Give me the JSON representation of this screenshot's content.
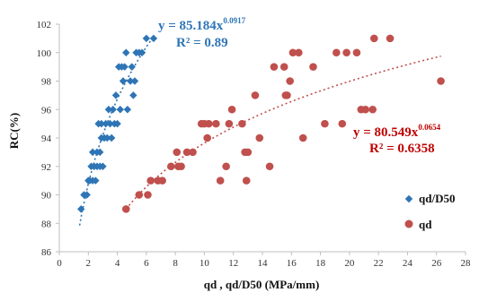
{
  "chart_data": {
    "type": "scatter",
    "title": "",
    "xlabel": "qd , qd/D50 (MPa/mm)",
    "ylabel": "RC(%)",
    "xlim": [
      0,
      28
    ],
    "ylim": [
      86,
      102
    ],
    "xticks": [
      "0",
      "2",
      "4",
      "6",
      "8",
      "10",
      "12",
      "14",
      "16",
      "18",
      "20",
      "22",
      "24",
      "26",
      "28"
    ],
    "yticks": [
      "86",
      "88",
      "90",
      "92",
      "94",
      "96",
      "98",
      "100",
      "102"
    ],
    "grid": false,
    "legend_position": "right",
    "series": [
      {
        "name": "qd/D50",
        "marker": "diamond",
        "color": "#2E75B6",
        "points": [
          [
            1.5,
            89
          ],
          [
            1.7,
            90
          ],
          [
            1.9,
            90
          ],
          [
            2.0,
            91
          ],
          [
            2.1,
            91
          ],
          [
            2.2,
            92
          ],
          [
            2.3,
            93
          ],
          [
            2.3,
            91
          ],
          [
            2.4,
            92
          ],
          [
            2.5,
            91
          ],
          [
            2.6,
            92
          ],
          [
            2.6,
            93
          ],
          [
            2.7,
            95
          ],
          [
            2.8,
            93
          ],
          [
            2.8,
            92
          ],
          [
            2.9,
            94
          ],
          [
            2.9,
            95
          ],
          [
            3.0,
            92
          ],
          [
            3.1,
            94
          ],
          [
            3.2,
            95
          ],
          [
            3.3,
            94
          ],
          [
            3.4,
            96
          ],
          [
            3.5,
            95
          ],
          [
            3.6,
            94
          ],
          [
            3.7,
            96
          ],
          [
            3.8,
            95
          ],
          [
            3.9,
            97
          ],
          [
            4.0,
            95
          ],
          [
            4.1,
            99
          ],
          [
            4.2,
            96
          ],
          [
            4.3,
            99
          ],
          [
            4.4,
            98
          ],
          [
            4.5,
            99
          ],
          [
            4.6,
            100
          ],
          [
            4.7,
            96
          ],
          [
            4.9,
            98
          ],
          [
            5.0,
            99
          ],
          [
            5.1,
            97
          ],
          [
            5.2,
            98
          ],
          [
            5.3,
            100
          ],
          [
            5.5,
            100
          ],
          [
            5.7,
            100
          ],
          [
            6.0,
            101
          ],
          [
            6.5,
            101
          ]
        ],
        "trendline": {
          "type": "power",
          "a": 85.184,
          "b": 0.0917,
          "x_range": [
            1.4,
            6.3
          ]
        },
        "equation": {
          "base": "y = 85.184x",
          "exponent": "0.0917",
          "r2": "R² = 0.89"
        }
      },
      {
        "name": "qd",
        "marker": "circle",
        "color": "#C0504D",
        "points": [
          [
            4.6,
            89
          ],
          [
            5.5,
            90
          ],
          [
            6.1,
            90
          ],
          [
            6.3,
            91
          ],
          [
            6.8,
            91
          ],
          [
            7.1,
            91
          ],
          [
            7.7,
            92
          ],
          [
            8.1,
            93
          ],
          [
            8.2,
            92
          ],
          [
            8.4,
            92
          ],
          [
            8.8,
            93
          ],
          [
            9.2,
            93
          ],
          [
            9.8,
            95
          ],
          [
            10.0,
            95
          ],
          [
            10.2,
            94
          ],
          [
            10.3,
            95
          ],
          [
            10.8,
            95
          ],
          [
            11.1,
            91
          ],
          [
            11.5,
            92
          ],
          [
            11.7,
            95
          ],
          [
            11.9,
            96
          ],
          [
            12.6,
            95
          ],
          [
            12.8,
            93
          ],
          [
            12.9,
            91
          ],
          [
            13.0,
            93
          ],
          [
            13.5,
            97
          ],
          [
            13.8,
            94
          ],
          [
            14.5,
            92
          ],
          [
            14.8,
            99
          ],
          [
            15.5,
            99
          ],
          [
            15.6,
            97
          ],
          [
            15.7,
            97
          ],
          [
            15.9,
            98
          ],
          [
            16.1,
            100
          ],
          [
            16.5,
            100
          ],
          [
            16.8,
            94
          ],
          [
            17.5,
            99
          ],
          [
            18.3,
            95
          ],
          [
            19.1,
            100
          ],
          [
            19.5,
            95
          ],
          [
            19.8,
            100
          ],
          [
            20.5,
            100
          ],
          [
            20.8,
            96
          ],
          [
            21.1,
            96
          ],
          [
            21.6,
            96
          ],
          [
            21.7,
            101
          ],
          [
            22.8,
            101
          ],
          [
            26.3,
            98
          ]
        ],
        "trendline": {
          "type": "power",
          "a": 80.549,
          "b": 0.0654,
          "x_range": [
            4.6,
            26.3
          ]
        },
        "equation": {
          "base": "y = 80.549x",
          "exponent": "0.0654",
          "r2": "R² = 0.6358"
        }
      }
    ]
  }
}
